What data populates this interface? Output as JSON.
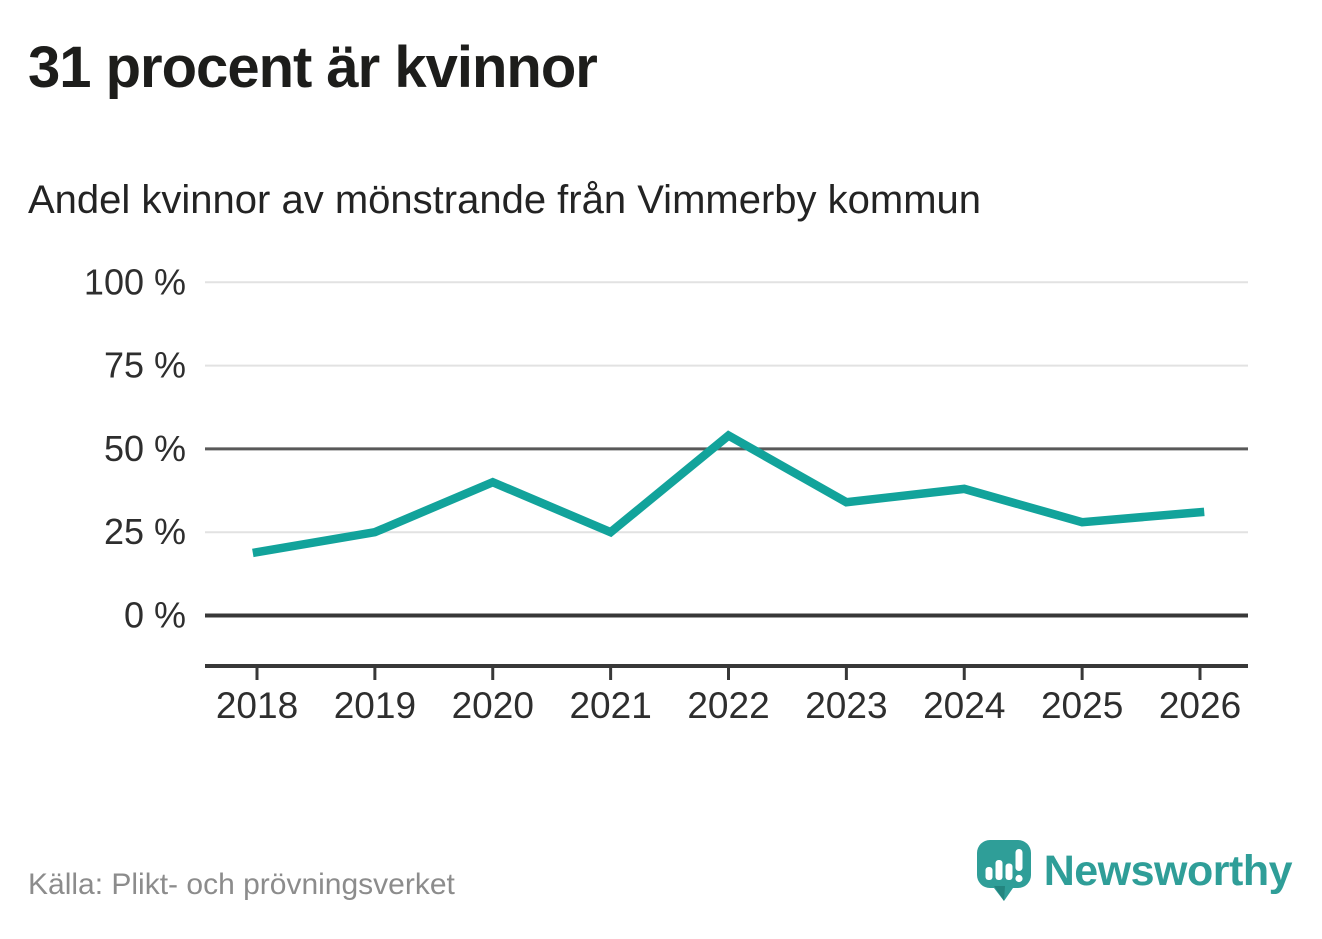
{
  "header": {
    "title": "31 procent är kvinnor",
    "subtitle": "Andel kvinnor av mönstrande från Vimmerby kommun"
  },
  "footer": {
    "source": "Källa: Plikt- och prövningsverket",
    "brand": {
      "name": "Newsworthy",
      "icon": "newsworthy-speech-bubble-bar-chart-icon"
    }
  },
  "colors": {
    "line": "#12a39b",
    "brand_teal": "#2f9e98",
    "brand_teal_dark": "#23857f",
    "grid_light": "#e2e2e2",
    "grid_mid": "#595959",
    "axis_dark": "#383838",
    "title_text": "#1d1d1b",
    "subtitle_text": "#232323",
    "tick_text": "#2e2e2e",
    "source_text": "#8c8c8c"
  },
  "chart_data": {
    "type": "line",
    "title": "Andel kvinnor av mönstrande från Vimmerby kommun",
    "x": [
      "2018",
      "2019",
      "2020",
      "2021",
      "2022",
      "2023",
      "2024",
      "2025",
      "2026"
    ],
    "series": [
      {
        "name": "Andel kvinnor av mönstrande",
        "values": [
          19,
          25,
          40,
          25,
          54,
          34,
          38,
          28,
          31
        ]
      }
    ],
    "unit": "%",
    "xlabel": "",
    "ylabel": "",
    "ylim": [
      0,
      100
    ],
    "yticks": [
      0,
      25,
      50,
      75,
      100
    ],
    "ytick_labels": [
      "0 %",
      "25 %",
      "50 %",
      "75 %",
      "100 %"
    ],
    "emphasized_yticks": [
      50
    ],
    "baseline_ytick": 0,
    "grid": "horizontal",
    "legend": "none"
  }
}
